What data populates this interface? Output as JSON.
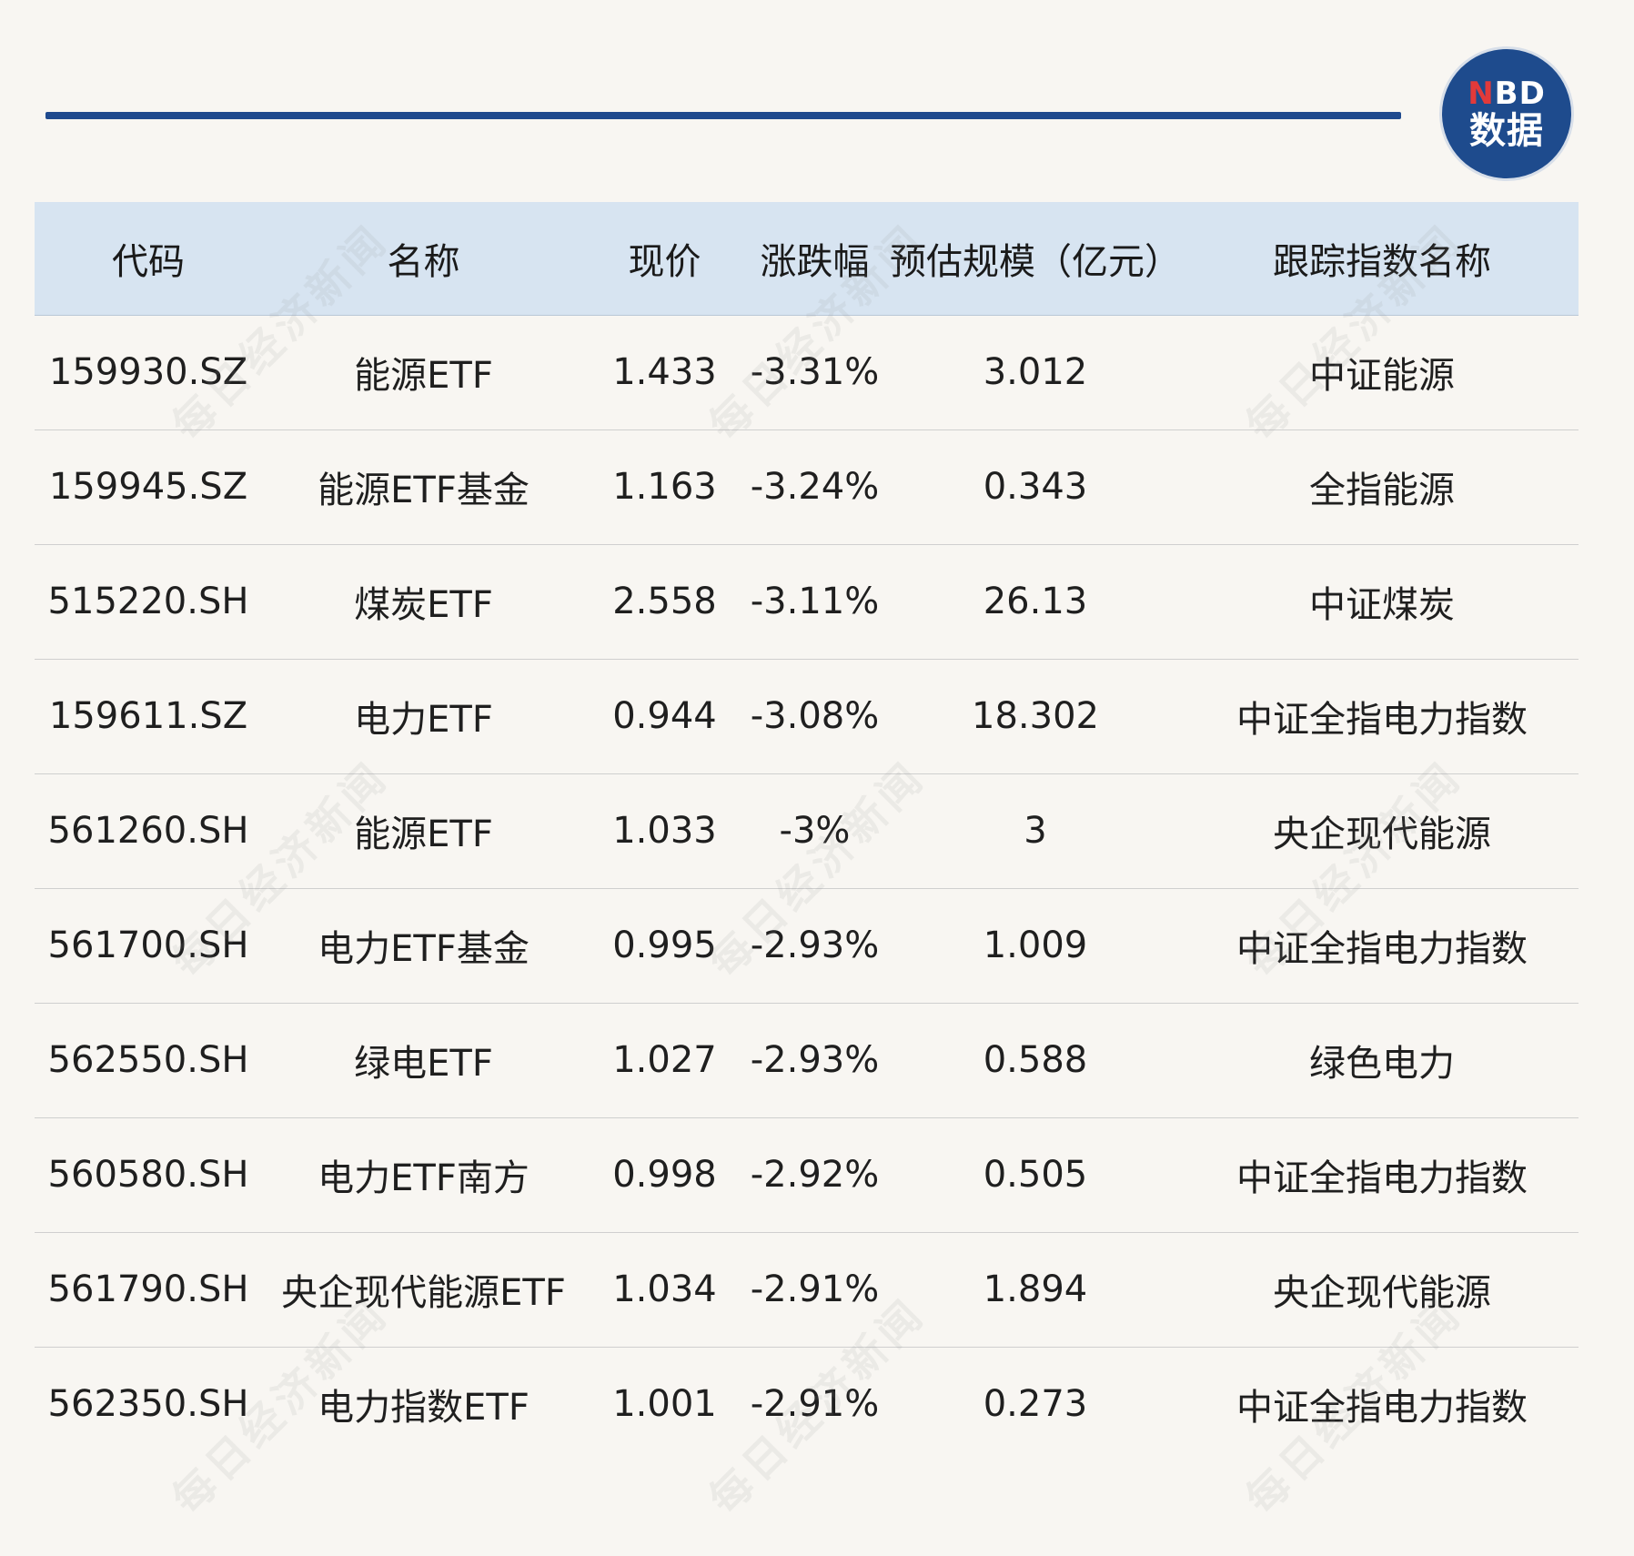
{
  "header": {
    "logo_top_n": "N",
    "logo_top_rest": "BD",
    "logo_bottom": "数据"
  },
  "watermark_text": "每日经济新闻",
  "table": {
    "columns": [
      "代码",
      "名称",
      "现价",
      "涨跌幅",
      "预估规模（亿元）",
      "跟踪指数名称"
    ],
    "rows": [
      [
        "159930.SZ",
        "能源ETF",
        "1.433",
        "-3.31%",
        "3.012",
        "中证能源"
      ],
      [
        "159945.SZ",
        "能源ETF基金",
        "1.163",
        "-3.24%",
        "0.343",
        "全指能源"
      ],
      [
        "515220.SH",
        "煤炭ETF",
        "2.558",
        "-3.11%",
        "26.13",
        "中证煤炭"
      ],
      [
        "159611.SZ",
        "电力ETF",
        "0.944",
        "-3.08%",
        "18.302",
        "中证全指电力指数"
      ],
      [
        "561260.SH",
        "能源ETF",
        "1.033",
        "-3%",
        "3",
        "央企现代能源"
      ],
      [
        "561700.SH",
        "电力ETF基金",
        "0.995",
        "-2.93%",
        "1.009",
        "中证全指电力指数"
      ],
      [
        "562550.SH",
        "绿电ETF",
        "1.027",
        "-2.93%",
        "0.588",
        "绿色电力"
      ],
      [
        "560580.SH",
        "电力ETF南方",
        "0.998",
        "-2.92%",
        "0.505",
        "中证全指电力指数"
      ],
      [
        "561790.SH",
        "央企现代能源ETF",
        "1.034",
        "-2.91%",
        "1.894",
        "央企现代能源"
      ],
      [
        "562350.SH",
        "电力指数ETF",
        "1.001",
        "-2.91%",
        "0.273",
        "中证全指电力指数"
      ]
    ]
  },
  "colors": {
    "accent": "#1f4a8e",
    "header_bg": "#d7e4f1",
    "page_bg": "#f8f6f2",
    "logo_red": "#e23a3a"
  }
}
